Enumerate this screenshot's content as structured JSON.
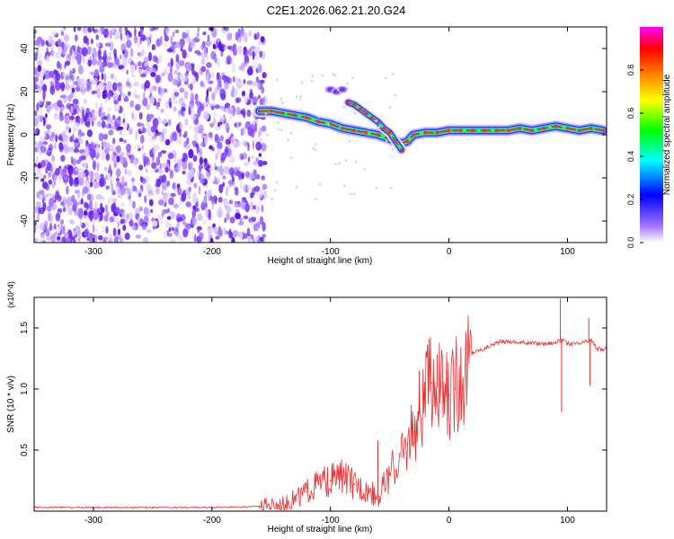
{
  "title": "C2E1.2026.062.21.20.G24",
  "chart_data": [
    {
      "type": "heatmap",
      "name": "spectrogram",
      "xlabel": "Height of straight line (km)",
      "ylabel": "Frequency (Hz)",
      "xlim": [
        -350,
        133
      ],
      "ylim": [
        -50,
        50
      ],
      "xticks": [
        -300,
        -200,
        -100,
        0,
        100
      ],
      "yticks": [
        -40,
        -20,
        0,
        20,
        40
      ],
      "noise_region": [
        -350,
        -155
      ],
      "signal_track": {
        "x": [
          -160,
          -150,
          -140,
          -130,
          -120,
          -110,
          -100,
          -90,
          -80,
          -70,
          -60,
          -50,
          -40,
          -35,
          -30,
          -20,
          -10,
          0,
          10,
          20,
          30,
          40,
          50,
          60,
          70,
          80,
          90,
          100,
          110,
          120,
          130
        ],
        "y": [
          11,
          11,
          10,
          9,
          8,
          6,
          5,
          3,
          2,
          1,
          0,
          -2,
          -4,
          -3,
          0,
          1,
          1,
          2,
          2,
          2,
          2,
          2,
          2,
          3,
          2,
          3,
          4,
          3,
          2,
          3,
          2
        ]
      },
      "secondary_branch": {
        "x": [
          -85,
          -80,
          -75,
          -70,
          -65,
          -60,
          -55,
          -50,
          -45,
          -40
        ],
        "y": [
          15,
          14,
          12,
          10,
          8,
          6,
          3,
          1,
          -3,
          -7
        ]
      },
      "blob": {
        "x": [
          -100,
          -95,
          -90
        ],
        "y": [
          21,
          20,
          21
        ]
      },
      "colorbar": {
        "label": "Normalized spectral amplitude",
        "range": [
          0,
          1
        ],
        "ticks": [
          "0.0",
          "0.2",
          "0.4",
          "0.6",
          "0.8"
        ],
        "tick_values": [
          0,
          0.2,
          0.4,
          0.6,
          0.8
        ],
        "colors": [
          "#ffffff",
          "#a070ff",
          "#0000ff",
          "#00ffff",
          "#00ff00",
          "#ffff00",
          "#ff8000",
          "#ff0000",
          "#ff00ff"
        ]
      }
    },
    {
      "type": "line",
      "name": "snr",
      "xlabel": "Height of straight line (km)",
      "ylabel": "SNR (10 * v/v)",
      "multiplier": "(x10^4)",
      "xlim": [
        -350,
        133
      ],
      "ylim": [
        0,
        1.75
      ],
      "xticks": [
        -300,
        -200,
        -100,
        0,
        100
      ],
      "yticks": [
        0.5,
        1.0,
        1.5
      ],
      "ytick_labels": [
        "0.5",
        "1.0",
        "1.5"
      ],
      "color": "#e83030",
      "series": [
        {
          "name": "SNR",
          "x": [
            -350,
            -300,
            -250,
            -200,
            -160,
            -140,
            -130,
            -120,
            -110,
            -100,
            -90,
            -80,
            -70,
            -60,
            -50,
            -40,
            -35,
            -30,
            -25,
            -20,
            -15,
            -10,
            -5,
            0,
            5,
            10,
            15,
            20,
            30,
            40,
            50,
            60,
            80,
            90,
            95,
            100,
            110,
            120,
            125,
            130,
            133
          ],
          "y": [
            0.03,
            0.03,
            0.03,
            0.03,
            0.04,
            0.06,
            0.1,
            0.16,
            0.22,
            0.25,
            0.28,
            0.22,
            0.18,
            0.12,
            0.3,
            0.45,
            0.55,
            0.65,
            0.8,
            0.95,
            1.05,
            1.02,
            0.95,
            0.95,
            1.0,
            1.1,
            1.2,
            1.3,
            1.33,
            1.38,
            1.39,
            1.38,
            1.37,
            1.38,
            1.4,
            1.37,
            1.37,
            1.4,
            1.33,
            1.32,
            1.33
          ]
        }
      ],
      "spikes": [
        {
          "x": -60,
          "y": 0.58
        },
        {
          "x": -25,
          "y": 1.15
        },
        {
          "x": -10,
          "y": 1.28
        },
        {
          "x": 94,
          "y": 1.74
        },
        {
          "x": 95,
          "y": 0.81
        },
        {
          "x": 118,
          "y": 1.58
        },
        {
          "x": 119,
          "y": 1.03
        }
      ]
    }
  ]
}
